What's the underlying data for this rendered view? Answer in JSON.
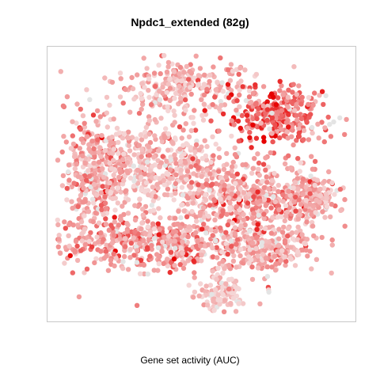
{
  "chart_data": {
    "type": "scatter",
    "title": "Npdc1_extended (82g)",
    "xlabel": "Gene set activity (AUC)",
    "ylabel": "",
    "axes_visible": false,
    "grid": false,
    "legend": "none",
    "point_colors": {
      "low": "#f5d5d5",
      "mid": "#f08a8a",
      "high": "#e60000",
      "gray": "#e4e4e4"
    },
    "clusters": [
      {
        "name": "top",
        "cx": 0.45,
        "cy": 0.87,
        "rx": 0.22,
        "ry": 0.09,
        "n": 260,
        "activity": 0.22
      },
      {
        "name": "upper-right",
        "cx": 0.76,
        "cy": 0.76,
        "rx": 0.15,
        "ry": 0.09,
        "n": 320,
        "activity": 0.58
      },
      {
        "name": "left",
        "cx": 0.14,
        "cy": 0.53,
        "rx": 0.11,
        "ry": 0.22,
        "n": 360,
        "activity": 0.34
      },
      {
        "name": "center-left",
        "cx": 0.38,
        "cy": 0.57,
        "rx": 0.17,
        "ry": 0.17,
        "n": 420,
        "activity": 0.18
      },
      {
        "name": "center-right",
        "cx": 0.65,
        "cy": 0.46,
        "rx": 0.18,
        "ry": 0.11,
        "n": 400,
        "activity": 0.36
      },
      {
        "name": "right",
        "cx": 0.86,
        "cy": 0.44,
        "rx": 0.1,
        "ry": 0.11,
        "n": 200,
        "activity": 0.3
      },
      {
        "name": "lower",
        "cx": 0.38,
        "cy": 0.28,
        "rx": 0.3,
        "ry": 0.09,
        "n": 520,
        "activity": 0.38
      },
      {
        "name": "lower-right",
        "cx": 0.72,
        "cy": 0.26,
        "rx": 0.14,
        "ry": 0.08,
        "n": 220,
        "activity": 0.26
      },
      {
        "name": "bottom",
        "cx": 0.57,
        "cy": 0.09,
        "rx": 0.08,
        "ry": 0.06,
        "n": 110,
        "activity": 0.1
      }
    ]
  }
}
